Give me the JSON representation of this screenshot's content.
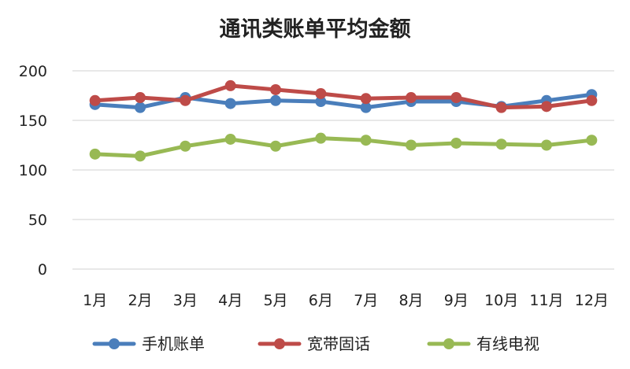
{
  "chart_data": {
    "type": "line",
    "title": "通讯类账单平均金额",
    "xlabel": "",
    "ylabel": "",
    "categories": [
      "1月",
      "2月",
      "3月",
      "4月",
      "5月",
      "6月",
      "7月",
      "8月",
      "9月",
      "10月",
      "11月",
      "12月"
    ],
    "ylim": [
      0,
      200
    ],
    "yticks": [
      "0",
      "50",
      "100",
      "150",
      "200"
    ],
    "grid": true,
    "legend_position": "bottom",
    "series": [
      {
        "name": "手机账单",
        "color": "#4a7ebb",
        "values": [
          166,
          163,
          173,
          167,
          170,
          169,
          163,
          169,
          169,
          164,
          170,
          176
        ]
      },
      {
        "name": "宽带固话",
        "color": "#be4b48",
        "values": [
          170,
          173,
          170,
          185,
          181,
          177,
          172,
          173,
          173,
          163,
          164,
          170
        ]
      },
      {
        "name": "有线电视",
        "color": "#98b954",
        "values": [
          116,
          114,
          124,
          131,
          124,
          132,
          130,
          125,
          127,
          126,
          125,
          130
        ]
      }
    ]
  }
}
